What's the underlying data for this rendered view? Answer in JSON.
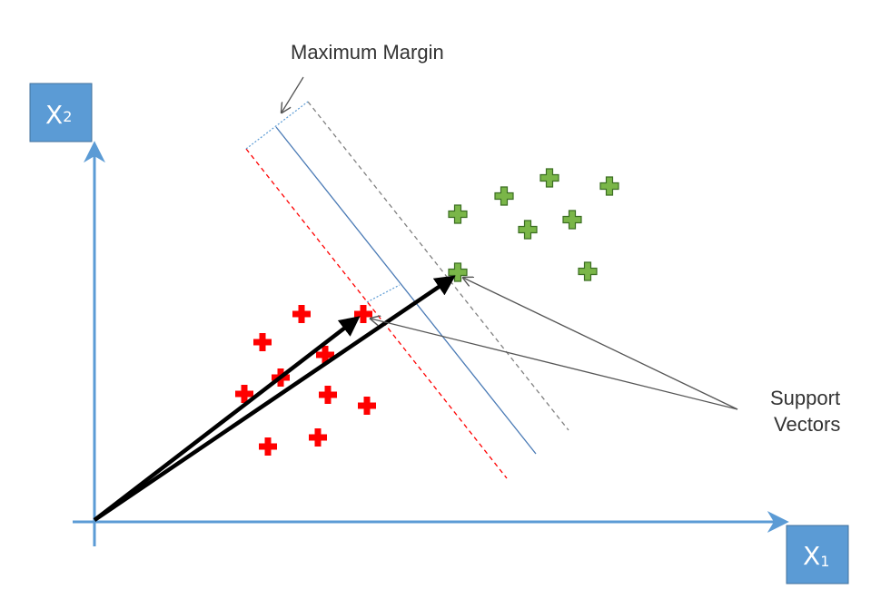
{
  "annotations": {
    "max_margin": "Maximum Margin",
    "support_line1": "Support",
    "support_line2": "Vectors"
  },
  "axes": {
    "x_main": "X",
    "x_sub": "1",
    "y_main": "X",
    "y_sub": "2"
  },
  "colors": {
    "axis": "#5b9bd5",
    "box_fill": "#5b9bd5",
    "box_border": "#41719c",
    "hyperplane": "#4a7ab5",
    "red_margin": "#ff0000",
    "gray_margin": "#808080",
    "blue_dotted": "#5b9bd5",
    "red_points": "#ff0000",
    "green_points": "#7ab648",
    "green_border": "#3b6e22",
    "arrow": "#000000",
    "pointer": "#555555"
  },
  "points": {
    "red_count": 11,
    "green_count": 9
  },
  "icons": {
    "red_point": "plus-icon",
    "green_point": "plus-icon"
  }
}
